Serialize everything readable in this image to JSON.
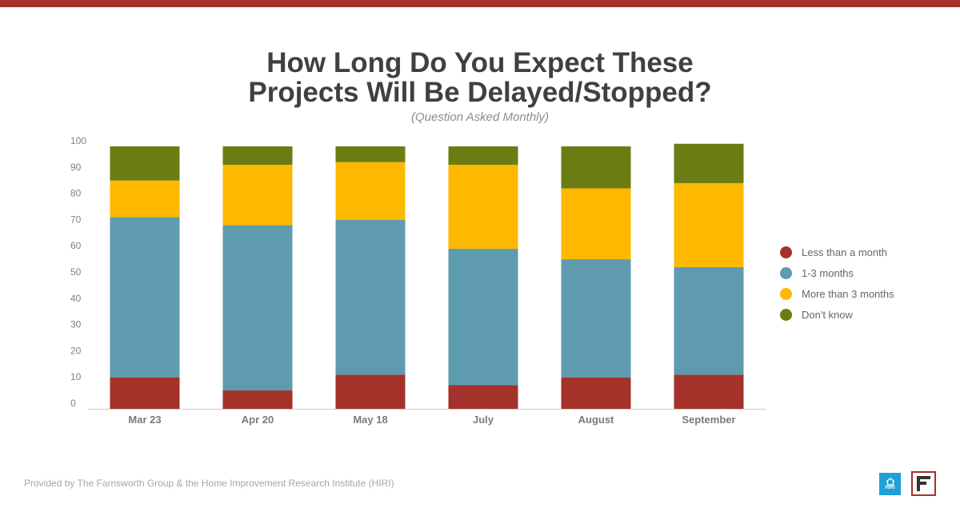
{
  "header": {
    "title_line1": "How Long Do You Expect These",
    "title_line2": "Projects Will Be Delayed/Stopped?",
    "subtitle": "(Question Asked Monthly)"
  },
  "colors": {
    "accent_bar": "#a4312a",
    "less_than_month": "#a4312a",
    "one_to_three": "#5e9baf",
    "more_than_three": "#ffb800",
    "dont_know": "#6b7d12"
  },
  "chart_data": {
    "type": "bar",
    "stacked": true,
    "title": "How Long Do You Expect These Projects Will Be Delayed/Stopped?",
    "subtitle": "(Question Asked Monthly)",
    "xlabel": "",
    "ylabel": "",
    "ylim": [
      0,
      100
    ],
    "yticks": [
      0,
      10,
      20,
      30,
      40,
      50,
      60,
      70,
      80,
      90,
      100
    ],
    "categories": [
      "Mar 23",
      "Apr 20",
      "May 18",
      "July",
      "August",
      "September"
    ],
    "grid": false,
    "legend_position": "right",
    "series": [
      {
        "name": "Less than a month",
        "color": "#a4312a",
        "values": [
          12,
          7,
          13,
          9,
          12,
          13
        ]
      },
      {
        "name": "1-3 months",
        "color": "#5e9baf",
        "values": [
          61,
          63,
          59,
          52,
          45,
          41
        ]
      },
      {
        "name": "More than 3 months",
        "color": "#ffb800",
        "values": [
          14,
          23,
          22,
          32,
          27,
          32
        ]
      },
      {
        "name": "Don't know",
        "color": "#6b7d12",
        "values": [
          13,
          7,
          6,
          7,
          16,
          15
        ]
      }
    ]
  },
  "footer": {
    "credit": "Provided by The Farnsworth Group & the Home Improvement Research Institute (HIRI)",
    "hiri_logo_text": "HIRI"
  }
}
